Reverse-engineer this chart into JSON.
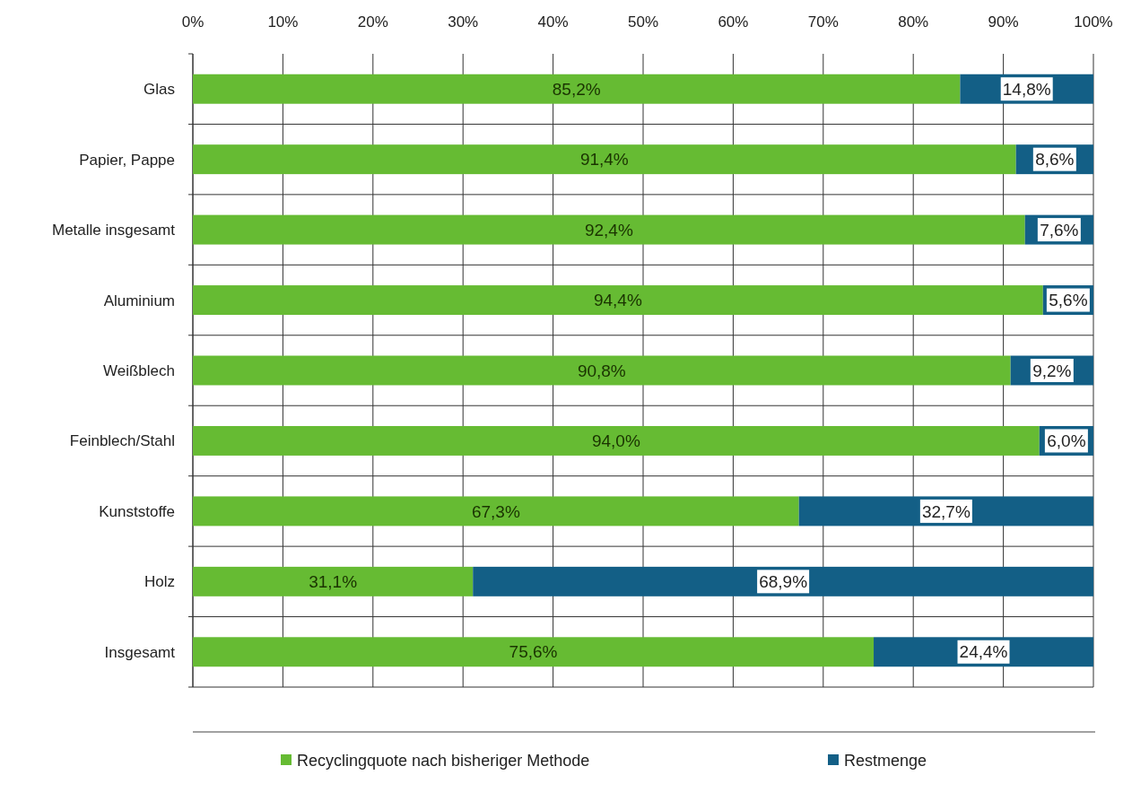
{
  "chart_data": {
    "type": "bar",
    "orientation": "horizontal",
    "stacked": true,
    "categories": [
      "Glas",
      "Papier, Pappe",
      "Metalle insgesamt",
      "Aluminium",
      "Weißblech",
      "Feinblech/Stahl",
      "Kunststoffe",
      "Holz",
      "Insgesamt"
    ],
    "series": [
      {
        "name": "Recyclingquote nach bisheriger Methode",
        "color": "#66bb33",
        "values": [
          85.2,
          91.4,
          92.4,
          94.4,
          90.8,
          94.0,
          67.3,
          31.1,
          75.6
        ],
        "value_labels": [
          "85,2%",
          "91,4%",
          "92,4%",
          "94,4%",
          "90,8%",
          "94,0%",
          "67,3%",
          "31,1%",
          "75,6%"
        ]
      },
      {
        "name": "Restmenge",
        "color": "#135f86",
        "values": [
          14.8,
          8.6,
          7.6,
          5.6,
          9.2,
          6.0,
          32.7,
          68.9,
          24.4
        ],
        "value_labels": [
          "14,8%",
          "8,6%",
          "7,6%",
          "5,6%",
          "9,2%",
          "6,0%",
          "32,7%",
          "68,9%",
          "24,4%"
        ]
      }
    ],
    "xlim": [
      0,
      100
    ],
    "xticks": [
      {
        "value": 0,
        "label": "0%"
      },
      {
        "value": 10,
        "label": "10%"
      },
      {
        "value": 20,
        "label": "20%"
      },
      {
        "value": 30,
        "label": "30%"
      },
      {
        "value": 40,
        "label": "40%"
      },
      {
        "value": 50,
        "label": "50%"
      },
      {
        "value": 60,
        "label": "60%"
      },
      {
        "value": 70,
        "label": "70%"
      },
      {
        "value": 80,
        "label": "80%"
      },
      {
        "value": 90,
        "label": "90%"
      },
      {
        "value": 100,
        "label": "100%"
      }
    ],
    "grid": true,
    "legend": "bottom"
  }
}
